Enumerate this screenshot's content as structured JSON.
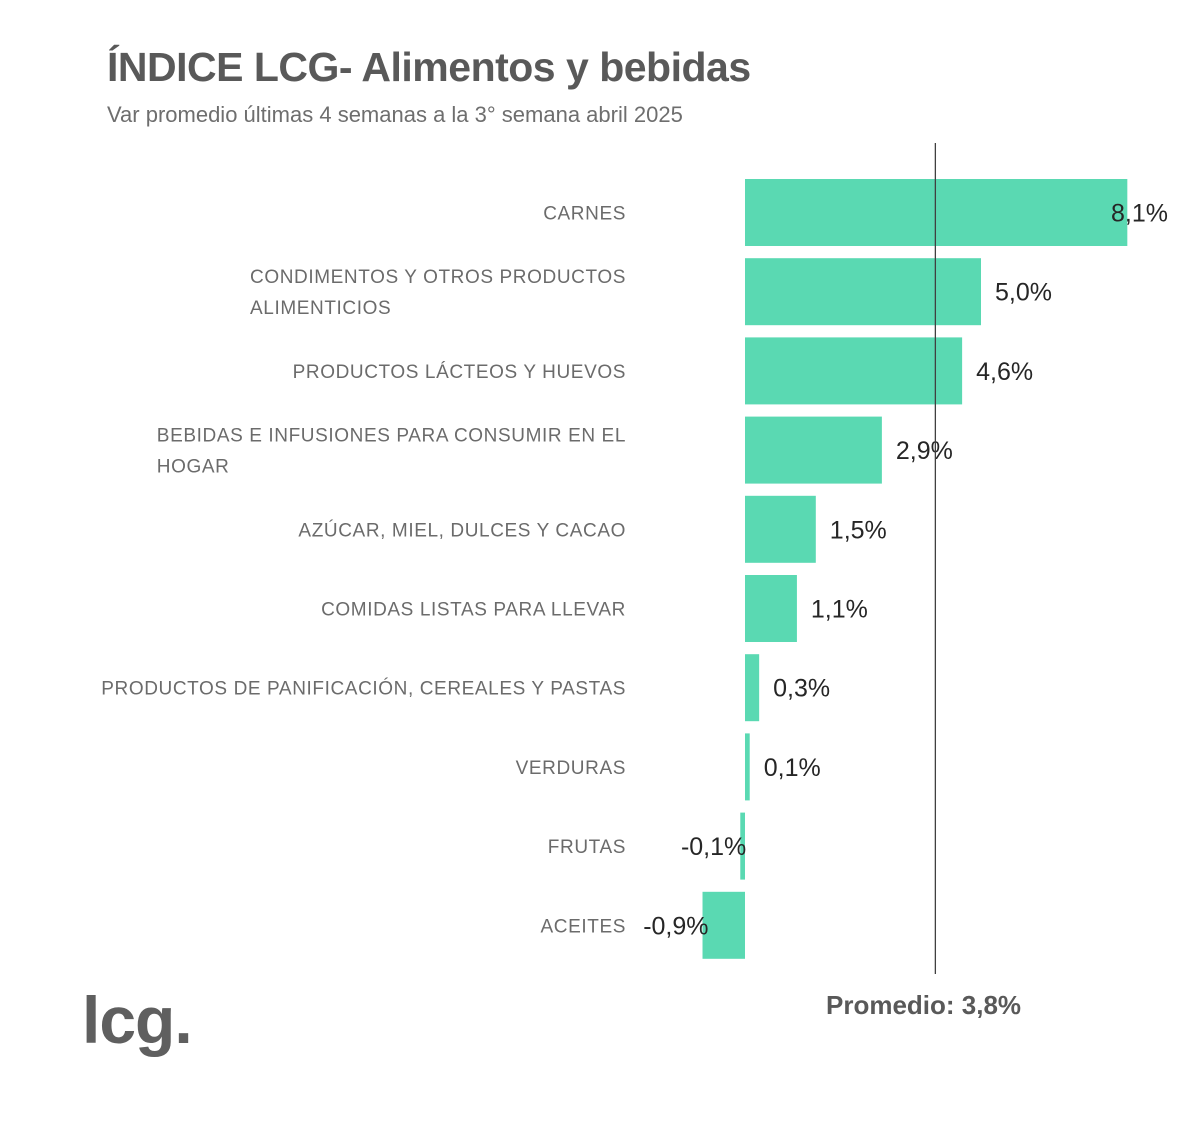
{
  "chart_data": {
    "type": "bar",
    "orientation": "horizontal",
    "title": "ÍNDICE LCG- Alimentos y bebidas",
    "subtitle": "Var promedio  últimas 4 semanas a la 3° semana abril 2025",
    "categories": [
      [
        "CARNES"
      ],
      [
        "CONDIMENTOS Y OTROS PRODUCTOS",
        "ALIMENTICIOS"
      ],
      [
        "PRODUCTOS LÁCTEOS Y HUEVOS"
      ],
      [
        "BEBIDAS E INFUSIONES PARA CONSUMIR EN EL",
        "HOGAR"
      ],
      [
        "AZÚCAR, MIEL, DULCES Y CACAO"
      ],
      [
        "COMIDAS LISTAS PARA LLEVAR"
      ],
      [
        "PRODUCTOS DE PANIFICACIÓN, CEREALES Y PASTAS"
      ],
      [
        "VERDURAS"
      ],
      [
        "FRUTAS"
      ],
      [
        "ACEITES"
      ]
    ],
    "values": [
      8.1,
      5.0,
      4.6,
      2.9,
      1.5,
      1.1,
      0.3,
      0.1,
      -0.1,
      -0.9
    ],
    "value_labels": [
      "8,1%",
      "5,0%",
      "4,6%",
      "2,9%",
      "1,5%",
      "1,1%",
      "0,3%",
      "0,1%",
      "-0,1%",
      "-0,9%"
    ],
    "average": 3.8,
    "average_label": "Promedio: 3,8%",
    "bar_color": "#5ad9b2",
    "reference_line_color": "#404040"
  },
  "brand": {
    "logo_text": "lcg."
  }
}
